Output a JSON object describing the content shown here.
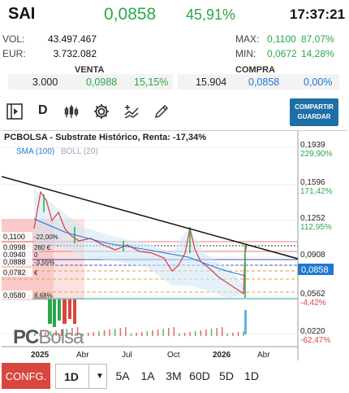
{
  "header": {
    "symbol": "SAI",
    "price": "0,0858",
    "change_pct": "45,91%",
    "time": "17:37:21"
  },
  "stats": {
    "volume_label": "VOL:",
    "volume": "43.497.467",
    "eur_label": "EUR:",
    "eur": "3.732.082",
    "max_label": "MAX:",
    "max_price": "0,1100",
    "max_pct": "87,07%",
    "min_label": "MIN:",
    "min_price": "0,0672",
    "min_pct": "14,28%"
  },
  "orderbook": {
    "venta_title": "VENTA",
    "compra_title": "COMPRA",
    "venta_qty": "3.000",
    "venta_price": "0,0988",
    "venta_pct": "15,15%",
    "compra_qty": "15.904",
    "compra_price": "0,0858",
    "compra_pct": "0,00%"
  },
  "toolbar": {
    "period_label": "D",
    "share_line1": "COMPARTIR",
    "share_line2": "GUARDAR",
    "icons": [
      "play-panel-icon",
      "candlestick-icon",
      "gear-icon",
      "indicator-icon",
      "pencil-icon"
    ]
  },
  "chart": {
    "title": "PCBOLSA - Substrate Histórico, Renta: -17,34%",
    "legend_sma": "SMA (100)",
    "legend_boll": "BOLL (20)",
    "watermark_pc": "PC",
    "watermark_bolsa": "Bolsa",
    "right_labels": [
      {
        "price": "0,1939",
        "pct": "229,90%",
        "pct_color": "#2aa84a"
      },
      {
        "price": "0,1596",
        "pct": "171,42%",
        "pct_color": "#2aa84a"
      },
      {
        "price": "0,1252",
        "pct": "112,95%",
        "pct_color": "#2aa84a"
      },
      {
        "price": "0,0908",
        "pct": "",
        "pct_color": "#2aa84a"
      },
      {
        "price": "0,0562",
        "pct": "-4,42%",
        "pct_color": "#d9463f"
      },
      {
        "price": "0,0220",
        "pct": "-62,47%",
        "pct_color": "#d9463f"
      }
    ],
    "current_price_tag": "0,0858",
    "left_levels": [
      {
        "price": "0,1100",
        "pct": "-22,00%"
      },
      {
        "price": "0,0998",
        "pct": "260 €"
      },
      {
        "price": "0,0940",
        "pct": "0"
      },
      {
        "price": "0,0888",
        "pct": "-3,55%"
      },
      {
        "price": "0,0782",
        "pct": "€"
      },
      {
        "price": "0,0580",
        "pct": "8,68%"
      }
    ],
    "x_labels": [
      "2025",
      "Abr",
      "Jul",
      "Oct",
      "2026",
      "Abr"
    ],
    "accent": "#2aa84a",
    "down_color": "#d9463f",
    "line_color": "#1f78d1"
  },
  "bottom_bar": {
    "config": "CONFG.",
    "interval": "1D",
    "ranges": [
      "5A",
      "1A",
      "3M",
      "60D",
      "5D",
      "1D"
    ]
  }
}
